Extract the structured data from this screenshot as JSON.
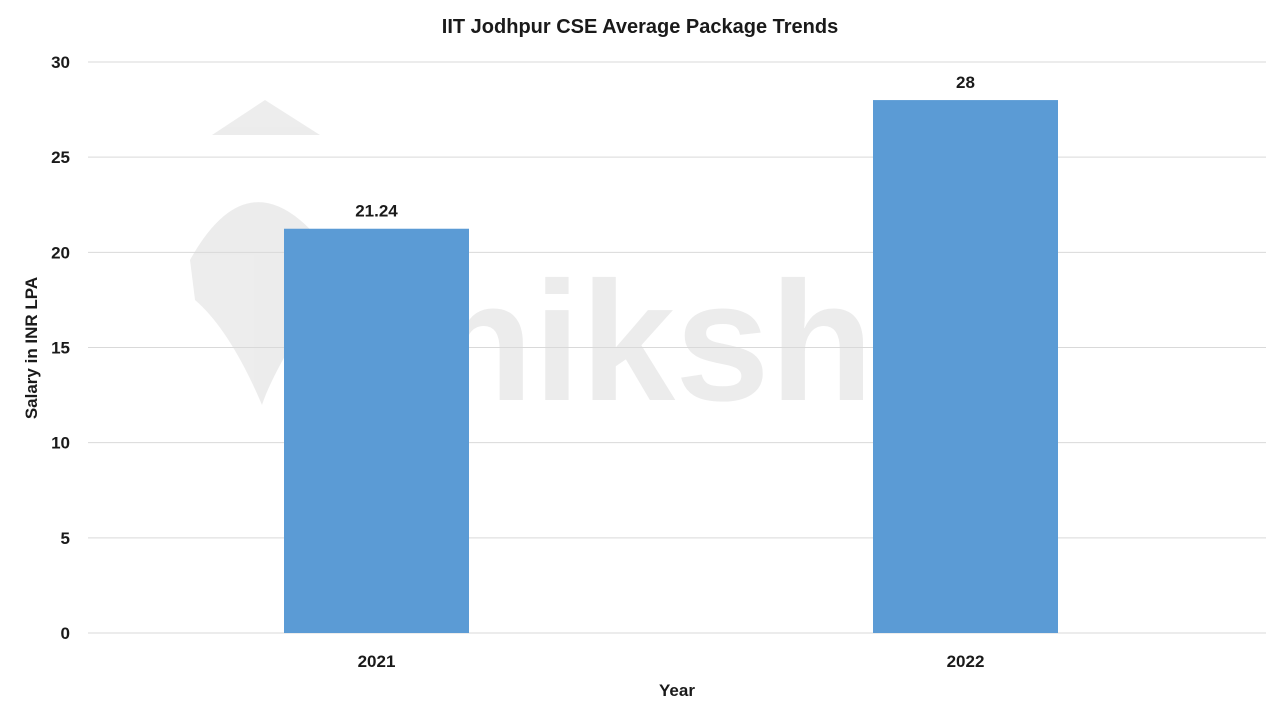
{
  "chart_data": {
    "type": "bar",
    "title": "IIT Jodhpur CSE Average Package Trends",
    "xlabel": "Year",
    "ylabel": "Salary in INR LPA",
    "categories": [
      "2021",
      "2022"
    ],
    "values": [
      21.24,
      28
    ],
    "data_labels": [
      "21.24",
      "28"
    ],
    "ylim": [
      0,
      30
    ],
    "yticks": [
      0,
      5,
      10,
      15,
      20,
      25,
      30
    ],
    "grid": true,
    "legend": "none",
    "bar_color": "#5b9bd5",
    "watermark": "shiksha"
  }
}
